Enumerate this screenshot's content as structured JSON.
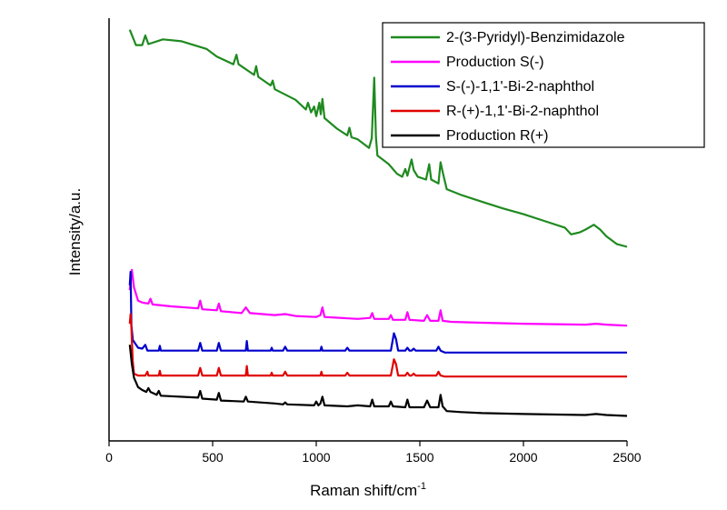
{
  "chart_data": {
    "type": "line",
    "xlabel": "Raman shift/cm",
    "xlabel_superscript": "-1",
    "ylabel": "Intensity/a.u.",
    "xlim": [
      0,
      2500
    ],
    "x_ticks": [
      0,
      500,
      1000,
      1500,
      2000,
      2500
    ],
    "y_ticks_shown": false,
    "grid": false,
    "legend_position": "top-right",
    "series": [
      {
        "name": "2-(3-Pyridyl)-Benzimidazole",
        "color": "#1f8a1f",
        "points": [
          [
            100,
            428
          ],
          [
            130,
            412
          ],
          [
            160,
            412
          ],
          [
            175,
            422
          ],
          [
            190,
            413
          ],
          [
            260,
            418
          ],
          [
            350,
            416
          ],
          [
            470,
            408
          ],
          [
            520,
            400
          ],
          [
            600,
            392
          ],
          [
            615,
            402
          ],
          [
            625,
            392
          ],
          [
            700,
            381
          ],
          [
            710,
            390
          ],
          [
            720,
            379
          ],
          [
            780,
            370
          ],
          [
            790,
            375
          ],
          [
            800,
            366
          ],
          [
            900,
            355
          ],
          [
            950,
            345
          ],
          [
            960,
            352
          ],
          [
            975,
            342
          ],
          [
            990,
            348
          ],
          [
            1000,
            338
          ],
          [
            1015,
            352
          ],
          [
            1022,
            340
          ],
          [
            1030,
            356
          ],
          [
            1040,
            336
          ],
          [
            1100,
            325
          ],
          [
            1150,
            318
          ],
          [
            1160,
            326
          ],
          [
            1170,
            316
          ],
          [
            1200,
            314
          ],
          [
            1255,
            305
          ],
          [
            1268,
            315
          ],
          [
            1280,
            378
          ],
          [
            1288,
            316
          ],
          [
            1295,
            297
          ],
          [
            1320,
            293
          ],
          [
            1350,
            288
          ],
          [
            1390,
            278
          ],
          [
            1415,
            275
          ],
          [
            1430,
            283
          ],
          [
            1440,
            276
          ],
          [
            1460,
            293
          ],
          [
            1470,
            282
          ],
          [
            1490,
            275
          ],
          [
            1530,
            272
          ],
          [
            1545,
            288
          ],
          [
            1555,
            272
          ],
          [
            1590,
            268
          ],
          [
            1600,
            290
          ],
          [
            1610,
            280
          ],
          [
            1630,
            262
          ],
          [
            1700,
            256
          ],
          [
            1800,
            249
          ],
          [
            1900,
            242
          ],
          [
            2000,
            236
          ],
          [
            2100,
            229
          ],
          [
            2200,
            222
          ],
          [
            2230,
            215
          ],
          [
            2270,
            217
          ],
          [
            2300,
            220
          ],
          [
            2340,
            225
          ],
          [
            2370,
            220
          ],
          [
            2400,
            213
          ],
          [
            2450,
            205
          ],
          [
            2500,
            202
          ]
        ]
      },
      {
        "name": "Production S(-)",
        "color": "#ff00ff",
        "points": [
          [
            100,
            157
          ],
          [
            110,
            178
          ],
          [
            120,
            160
          ],
          [
            140,
            146
          ],
          [
            160,
            144
          ],
          [
            190,
            143
          ],
          [
            200,
            148
          ],
          [
            210,
            142
          ],
          [
            300,
            140
          ],
          [
            430,
            138
          ],
          [
            440,
            146
          ],
          [
            450,
            137
          ],
          [
            520,
            136
          ],
          [
            530,
            143
          ],
          [
            540,
            135
          ],
          [
            640,
            133
          ],
          [
            660,
            139
          ],
          [
            680,
            133
          ],
          [
            800,
            131
          ],
          [
            850,
            132
          ],
          [
            900,
            130
          ],
          [
            1000,
            129
          ],
          [
            1020,
            131
          ],
          [
            1030,
            139
          ],
          [
            1040,
            129
          ],
          [
            1200,
            127
          ],
          [
            1260,
            128
          ],
          [
            1270,
            133
          ],
          [
            1280,
            127
          ],
          [
            1350,
            127
          ],
          [
            1360,
            131
          ],
          [
            1370,
            126
          ],
          [
            1430,
            126
          ],
          [
            1440,
            134
          ],
          [
            1450,
            126
          ],
          [
            1520,
            125
          ],
          [
            1535,
            131
          ],
          [
            1550,
            125
          ],
          [
            1590,
            125
          ],
          [
            1600,
            136
          ],
          [
            1610,
            125
          ],
          [
            1650,
            124
          ],
          [
            1800,
            123
          ],
          [
            2000,
            122
          ],
          [
            2300,
            121
          ],
          [
            2350,
            122
          ],
          [
            2400,
            121
          ],
          [
            2500,
            120
          ]
        ]
      },
      {
        "name": "S-(-)-1,1'-Bi-2-naphthol",
        "color": "#0000cc",
        "points": [
          [
            100,
            162
          ],
          [
            104,
            176
          ],
          [
            108,
            120
          ],
          [
            115,
            105
          ],
          [
            140,
            97
          ],
          [
            160,
            96
          ],
          [
            175,
            100
          ],
          [
            185,
            94
          ],
          [
            240,
            94
          ],
          [
            245,
            99
          ],
          [
            250,
            94
          ],
          [
            430,
            94
          ],
          [
            440,
            102
          ],
          [
            450,
            94
          ],
          [
            520,
            94
          ],
          [
            530,
            102
          ],
          [
            540,
            94
          ],
          [
            660,
            94
          ],
          [
            665,
            104
          ],
          [
            670,
            94
          ],
          [
            780,
            94
          ],
          [
            785,
            97
          ],
          [
            790,
            94
          ],
          [
            840,
            94
          ],
          [
            850,
            98
          ],
          [
            860,
            94
          ],
          [
            1020,
            94
          ],
          [
            1025,
            98
          ],
          [
            1030,
            94
          ],
          [
            1140,
            94
          ],
          [
            1150,
            97
          ],
          [
            1160,
            94
          ],
          [
            1360,
            94
          ],
          [
            1375,
            112
          ],
          [
            1385,
            106
          ],
          [
            1395,
            94
          ],
          [
            1430,
            94
          ],
          [
            1440,
            97
          ],
          [
            1450,
            94
          ],
          [
            1460,
            94
          ],
          [
            1470,
            96
          ],
          [
            1480,
            94
          ],
          [
            1580,
            94
          ],
          [
            1590,
            98
          ],
          [
            1600,
            94
          ],
          [
            1620,
            92
          ],
          [
            1700,
            92
          ],
          [
            2000,
            92
          ],
          [
            2500,
            92
          ]
        ]
      },
      {
        "name": "R-(+)-1,1'-Bi-2-naphthol",
        "color": "#e00000",
        "points": [
          [
            100,
            122
          ],
          [
            104,
            132
          ],
          [
            108,
            118
          ],
          [
            114,
            84
          ],
          [
            120,
            70
          ],
          [
            140,
            68
          ],
          [
            175,
            68
          ],
          [
            185,
            72
          ],
          [
            190,
            68
          ],
          [
            240,
            68
          ],
          [
            245,
            73
          ],
          [
            250,
            68
          ],
          [
            430,
            68
          ],
          [
            440,
            76
          ],
          [
            450,
            68
          ],
          [
            520,
            68
          ],
          [
            530,
            76
          ],
          [
            540,
            68
          ],
          [
            660,
            68
          ],
          [
            665,
            78
          ],
          [
            670,
            68
          ],
          [
            780,
            68
          ],
          [
            785,
            71
          ],
          [
            790,
            68
          ],
          [
            840,
            68
          ],
          [
            850,
            72
          ],
          [
            860,
            68
          ],
          [
            1020,
            68
          ],
          [
            1025,
            72
          ],
          [
            1030,
            68
          ],
          [
            1140,
            68
          ],
          [
            1150,
            71
          ],
          [
            1160,
            68
          ],
          [
            1360,
            68
          ],
          [
            1375,
            85
          ],
          [
            1385,
            80
          ],
          [
            1395,
            68
          ],
          [
            1430,
            68
          ],
          [
            1440,
            71
          ],
          [
            1450,
            68
          ],
          [
            1460,
            68
          ],
          [
            1470,
            70
          ],
          [
            1480,
            68
          ],
          [
            1580,
            68
          ],
          [
            1590,
            72
          ],
          [
            1600,
            68
          ],
          [
            1620,
            67
          ],
          [
            1700,
            67
          ],
          [
            2000,
            67
          ],
          [
            2500,
            67
          ]
        ]
      },
      {
        "name": "Production R(+)",
        "color": "#000000",
        "points": [
          [
            100,
            100
          ],
          [
            110,
            80
          ],
          [
            120,
            66
          ],
          [
            140,
            56
          ],
          [
            160,
            53
          ],
          [
            180,
            51
          ],
          [
            190,
            55
          ],
          [
            200,
            51
          ],
          [
            230,
            48
          ],
          [
            240,
            52
          ],
          [
            250,
            47
          ],
          [
            430,
            45
          ],
          [
            440,
            52
          ],
          [
            450,
            44
          ],
          [
            520,
            43
          ],
          [
            530,
            50
          ],
          [
            540,
            42
          ],
          [
            650,
            41
          ],
          [
            660,
            46
          ],
          [
            670,
            41
          ],
          [
            800,
            39
          ],
          [
            840,
            38
          ],
          [
            850,
            40
          ],
          [
            860,
            38
          ],
          [
            990,
            37
          ],
          [
            1000,
            41
          ],
          [
            1010,
            37
          ],
          [
            1020,
            39
          ],
          [
            1030,
            46
          ],
          [
            1040,
            37
          ],
          [
            1150,
            36
          ],
          [
            1200,
            37
          ],
          [
            1260,
            36
          ],
          [
            1270,
            43
          ],
          [
            1280,
            36
          ],
          [
            1350,
            36
          ],
          [
            1360,
            41
          ],
          [
            1370,
            36
          ],
          [
            1430,
            35
          ],
          [
            1440,
            43
          ],
          [
            1450,
            35
          ],
          [
            1520,
            35
          ],
          [
            1535,
            42
          ],
          [
            1550,
            35
          ],
          [
            1590,
            35
          ],
          [
            1600,
            48
          ],
          [
            1610,
            36
          ],
          [
            1630,
            31
          ],
          [
            1700,
            30
          ],
          [
            1800,
            29
          ],
          [
            2000,
            28
          ],
          [
            2300,
            27
          ],
          [
            2350,
            28
          ],
          [
            2400,
            27
          ],
          [
            2500,
            26
          ]
        ]
      }
    ]
  }
}
